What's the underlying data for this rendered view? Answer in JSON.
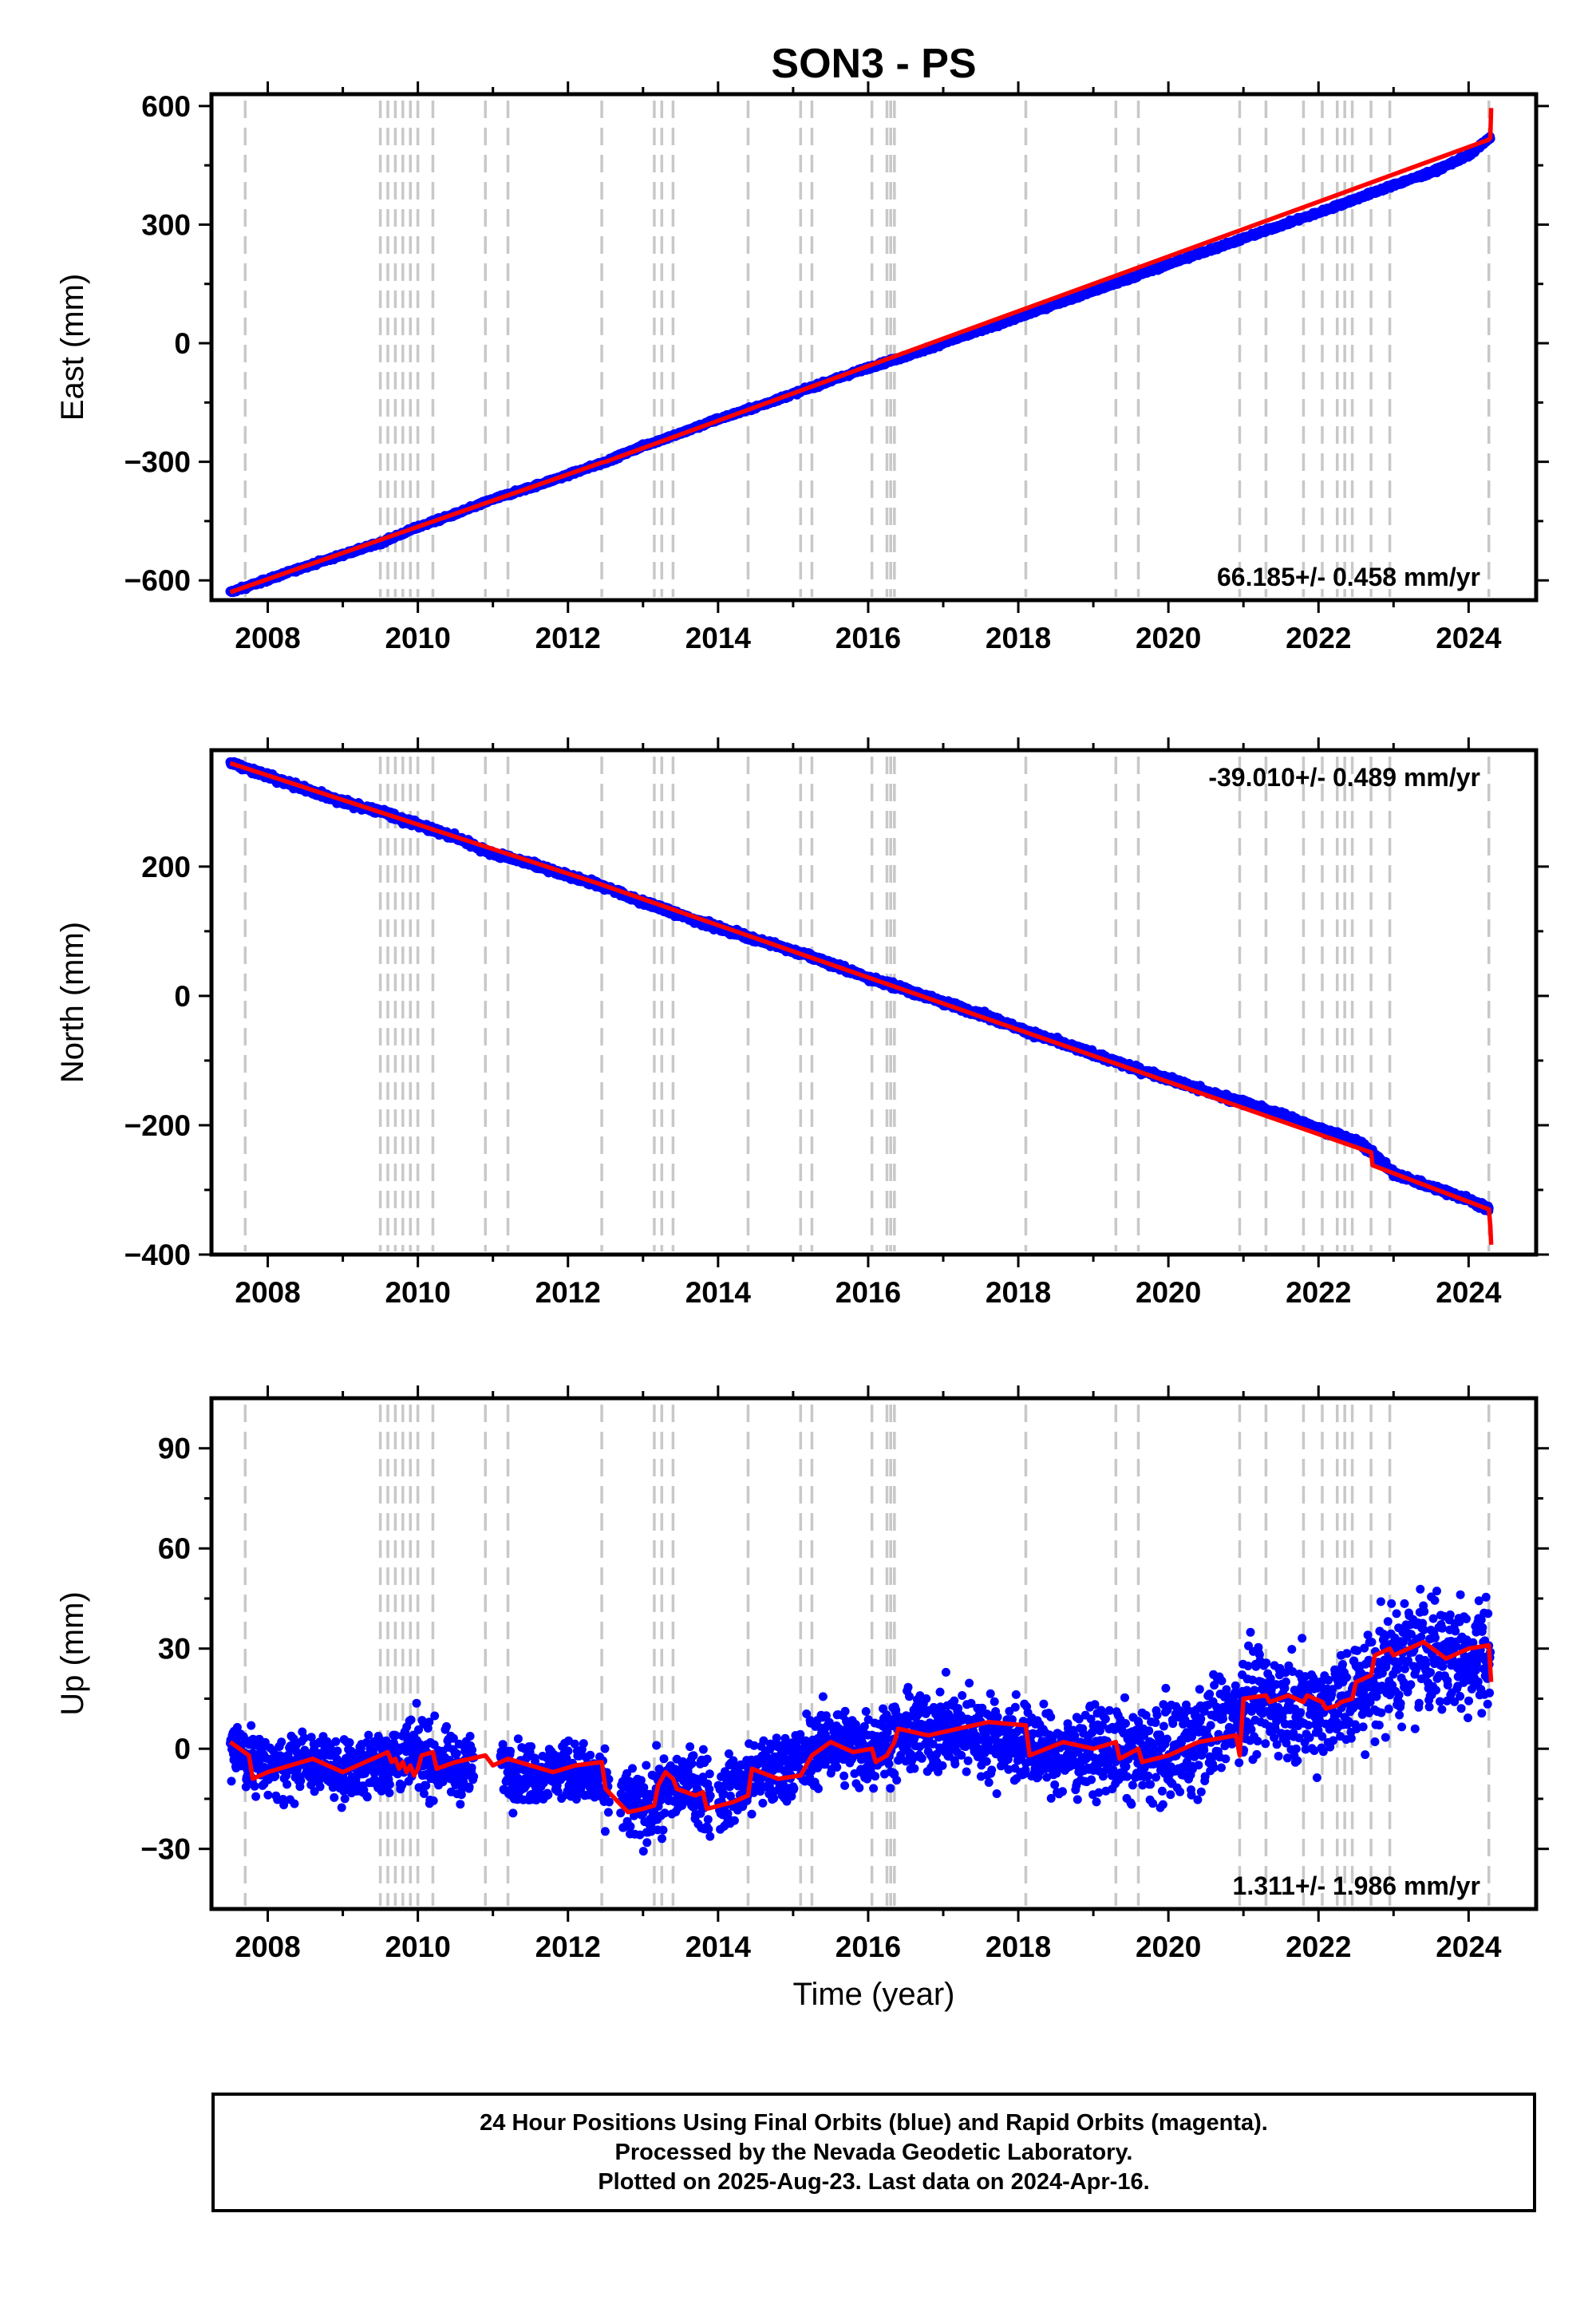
{
  "figure_title": "SON3 - PS",
  "footer": {
    "line1": "24 Hour Positions Using Final Orbits (blue) and Rapid Orbits (magenta).",
    "line2": "Processed by the Nevada Geodetic Laboratory.",
    "line3": "Plotted on 2025-Aug-23. Last data on 2024-Apr-16."
  },
  "colors": {
    "data_points": "#0000ff",
    "model_line": "#ff0000",
    "event_lines": "#c8c8c8",
    "frame": "#000000"
  },
  "chart_data": [
    {
      "type": "scatter",
      "panel": "east",
      "title": "SON3 - PS",
      "xlabel": "",
      "ylabel": "East (mm)",
      "xlim": [
        2007.25,
        2024.9
      ],
      "ylim": [
        -650,
        630
      ],
      "xticks": [
        "2008",
        "2010",
        "2012",
        "2014",
        "2016",
        "2018",
        "2020",
        "2022",
        "2024"
      ],
      "yticks": [
        "600",
        "300",
        "0",
        "−300",
        "−600"
      ],
      "rate_label": "66.185+/- 0.458 mm/yr",
      "rate_position": "bottom-right",
      "series": [
        {
          "role": "data",
          "x": [
            2007.5,
            2008.0,
            2008.5,
            2009.0,
            2009.5,
            2010.0,
            2010.5,
            2011.0,
            2011.5,
            2012.0,
            2012.5,
            2013.0,
            2013.5,
            2014.0,
            2014.5,
            2015.0,
            2015.5,
            2016.0,
            2016.5,
            2017.0,
            2017.5,
            2018.0,
            2018.5,
            2019.0,
            2019.5,
            2020.0,
            2020.5,
            2021.0,
            2021.5,
            2022.0,
            2022.5,
            2023.0,
            2023.5,
            2024.0,
            2024.29
          ],
          "y": [
            -630,
            -598,
            -565,
            -535,
            -505,
            -465,
            -432,
            -395,
            -365,
            -333,
            -300,
            -260,
            -228,
            -192,
            -162,
            -128,
            -95,
            -62,
            -33,
            0,
            33,
            65,
            100,
            132,
            165,
            200,
            232,
            265,
            298,
            330,
            365,
            400,
            432,
            475,
            520
          ]
        },
        {
          "role": "model",
          "x": [
            2007.5,
            2012.45,
            2012.5,
            2024.27,
            2024.29,
            2024.3
          ],
          "y": [
            -630,
            -302,
            -300,
            515,
            520,
            595
          ]
        }
      ],
      "event_lines_x": [
        2007.7,
        2009.5,
        2009.6,
        2009.7,
        2009.8,
        2009.9,
        2010.0,
        2010.2,
        2010.9,
        2011.2,
        2012.45,
        2013.15,
        2013.25,
        2013.4,
        2014.4,
        2015.1,
        2015.25,
        2016.05,
        2016.25,
        2016.3,
        2016.35,
        2018.1,
        2019.3,
        2019.6,
        2020.95,
        2021.3,
        2021.8,
        2022.05,
        2022.25,
        2022.35,
        2022.45,
        2022.7,
        2022.95,
        2024.27
      ]
    },
    {
      "type": "scatter",
      "panel": "north",
      "xlabel": "",
      "ylabel": "North (mm)",
      "xlim": [
        2007.25,
        2024.9
      ],
      "ylim": [
        -400,
        380
      ],
      "xticks": [
        "2008",
        "2010",
        "2012",
        "2014",
        "2016",
        "2018",
        "2020",
        "2022",
        "2024"
      ],
      "yticks": [
        "200",
        "0",
        "−200",
        "−400"
      ],
      "rate_label": "-39.010+/- 0.489 mm/yr",
      "rate_position": "top-right",
      "series": [
        {
          "role": "data",
          "x": [
            2007.5,
            2008.0,
            2008.5,
            2009.0,
            2009.5,
            2010.0,
            2010.5,
            2011.0,
            2011.5,
            2012.0,
            2012.5,
            2013.0,
            2013.5,
            2014.0,
            2014.5,
            2015.0,
            2015.5,
            2016.0,
            2016.5,
            2017.0,
            2017.5,
            2018.0,
            2018.5,
            2019.0,
            2019.5,
            2020.0,
            2020.5,
            2021.0,
            2021.5,
            2022.0,
            2022.5,
            2022.7,
            2023.0,
            2023.5,
            2024.0,
            2024.27
          ],
          "y": [
            360,
            340,
            320,
            300,
            285,
            265,
            245,
            220,
            205,
            185,
            168,
            145,
            125,
            105,
            88,
            70,
            50,
            28,
            10,
            -10,
            -28,
            -50,
            -70,
            -90,
            -110,
            -128,
            -148,
            -165,
            -183,
            -205,
            -225,
            -240,
            -275,
            -295,
            -315,
            -330
          ]
        },
        {
          "role": "model",
          "x": [
            2007.5,
            2012.45,
            2012.5,
            2022.7,
            2022.72,
            2024.27,
            2024.29,
            2024.3
          ],
          "y": [
            360,
            172,
            170,
            -242,
            -262,
            -330,
            -355,
            -385
          ]
        }
      ],
      "event_lines_x": [
        2007.7,
        2009.5,
        2009.6,
        2009.7,
        2009.8,
        2009.9,
        2010.0,
        2010.2,
        2010.9,
        2011.2,
        2012.45,
        2013.15,
        2013.25,
        2013.4,
        2014.4,
        2015.1,
        2015.25,
        2016.05,
        2016.25,
        2016.3,
        2016.35,
        2018.1,
        2019.3,
        2019.6,
        2020.95,
        2021.3,
        2021.8,
        2022.05,
        2022.25,
        2022.35,
        2022.45,
        2022.7,
        2022.95,
        2024.27
      ]
    },
    {
      "type": "scatter",
      "panel": "up",
      "xlabel": "Time (year)",
      "ylabel": "Up (mm)",
      "xlim": [
        2007.25,
        2024.9
      ],
      "ylim": [
        -48,
        105
      ],
      "xticks": [
        "2008",
        "2010",
        "2012",
        "2014",
        "2016",
        "2018",
        "2020",
        "2022",
        "2024"
      ],
      "yticks": [
        "90",
        "60",
        "30",
        "0",
        "−30"
      ],
      "rate_label": "1.311+/- 1.986 mm/yr",
      "rate_position": "bottom-right",
      "series": [
        {
          "role": "data_envelope",
          "x": [
            2007.5,
            2008.0,
            2008.5,
            2009.0,
            2009.5,
            2010.0,
            2010.5,
            2011.0,
            2011.5,
            2012.0,
            2012.5,
            2013.0,
            2013.5,
            2014.0,
            2014.5,
            2015.0,
            2015.5,
            2016.0,
            2016.5,
            2017.0,
            2017.5,
            2018.0,
            2018.5,
            2019.0,
            2019.5,
            2020.0,
            2020.5,
            2021.0,
            2021.5,
            2022.0,
            2022.5,
            2023.0,
            2023.5,
            2024.0,
            2024.29
          ],
          "y": [
            1,
            -6,
            -4,
            -6,
            -4,
            -2,
            -6,
            -4,
            -8,
            -6,
            -12,
            -18,
            -10,
            -15,
            -8,
            -4,
            2,
            0,
            4,
            6,
            4,
            2,
            -2,
            0,
            -2,
            -2,
            4,
            14,
            14,
            12,
            16,
            26,
            30,
            28,
            28
          ],
          "spread": [
            8,
            8,
            8,
            8,
            9,
            10,
            8,
            8,
            8,
            8,
            9,
            10,
            10,
            10,
            10,
            10,
            10,
            10,
            11,
            11,
            11,
            11,
            11,
            11,
            12,
            13,
            14,
            14,
            14,
            14,
            15,
            16,
            17,
            17,
            16
          ]
        },
        {
          "role": "model",
          "x": [
            2007.5,
            2007.75,
            2007.8,
            2008.0,
            2008.3,
            2008.6,
            2009.0,
            2009.3,
            2009.5,
            2009.6,
            2009.65,
            2009.7,
            2009.75,
            2009.8,
            2009.85,
            2009.9,
            2009.95,
            2010.0,
            2010.05,
            2010.2,
            2010.25,
            2010.5,
            2010.9,
            2011.0,
            2011.2,
            2011.5,
            2011.8,
            2012.1,
            2012.45,
            2012.5,
            2012.8,
            2013.0,
            2013.15,
            2013.2,
            2013.25,
            2013.3,
            2013.4,
            2013.45,
            2013.7,
            2013.8,
            2013.85,
            2014.2,
            2014.4,
            2014.45,
            2014.8,
            2015.1,
            2015.2,
            2015.25,
            2015.5,
            2015.8,
            2016.05,
            2016.1,
            2016.25,
            2016.3,
            2016.35,
            2016.4,
            2016.8,
            2017.2,
            2017.6,
            2018.1,
            2018.15,
            2018.6,
            2019.0,
            2019.3,
            2019.35,
            2019.6,
            2019.65,
            2020.0,
            2020.4,
            2020.9,
            2020.95,
            2021.0,
            2021.3,
            2021.35,
            2021.6,
            2021.8,
            2021.85,
            2022.05,
            2022.1,
            2022.25,
            2022.3,
            2022.45,
            2022.5,
            2022.7,
            2022.75,
            2022.95,
            2023.0,
            2023.4,
            2023.7,
            2024.0,
            2024.27,
            2024.3
          ],
          "y": [
            2,
            -2,
            -9,
            -7,
            -5,
            -3,
            -7,
            -4,
            -2,
            -1,
            -4,
            -3,
            -6,
            -4,
            -7,
            -5,
            -8,
            -6,
            -2,
            -1,
            -6,
            -4,
            -2,
            -5,
            -3,
            -5,
            -7,
            -5,
            -4,
            -12,
            -19,
            -18,
            -17,
            -11,
            -9,
            -7,
            -9,
            -12,
            -14,
            -13,
            -18,
            -16,
            -14,
            -6,
            -9,
            -8,
            -4,
            -2,
            2,
            -1,
            0,
            -4,
            -2,
            0,
            2,
            6,
            4,
            6,
            8,
            7,
            -2,
            2,
            0,
            2,
            -3,
            0,
            -4,
            -2,
            2,
            4,
            -2,
            15,
            16,
            14,
            16,
            14,
            16,
            14,
            12,
            13,
            14,
            15,
            20,
            22,
            28,
            30,
            28,
            32,
            27,
            30,
            31,
            20
          ]
        }
      ],
      "event_lines_x": [
        2007.7,
        2009.5,
        2009.6,
        2009.7,
        2009.8,
        2009.9,
        2010.0,
        2010.2,
        2010.9,
        2011.2,
        2012.45,
        2013.15,
        2013.25,
        2013.4,
        2014.4,
        2015.1,
        2015.25,
        2016.05,
        2016.25,
        2016.3,
        2016.35,
        2018.1,
        2019.3,
        2019.6,
        2020.95,
        2021.3,
        2021.8,
        2022.05,
        2022.25,
        2022.35,
        2022.45,
        2022.7,
        2022.95,
        2024.27
      ]
    }
  ]
}
